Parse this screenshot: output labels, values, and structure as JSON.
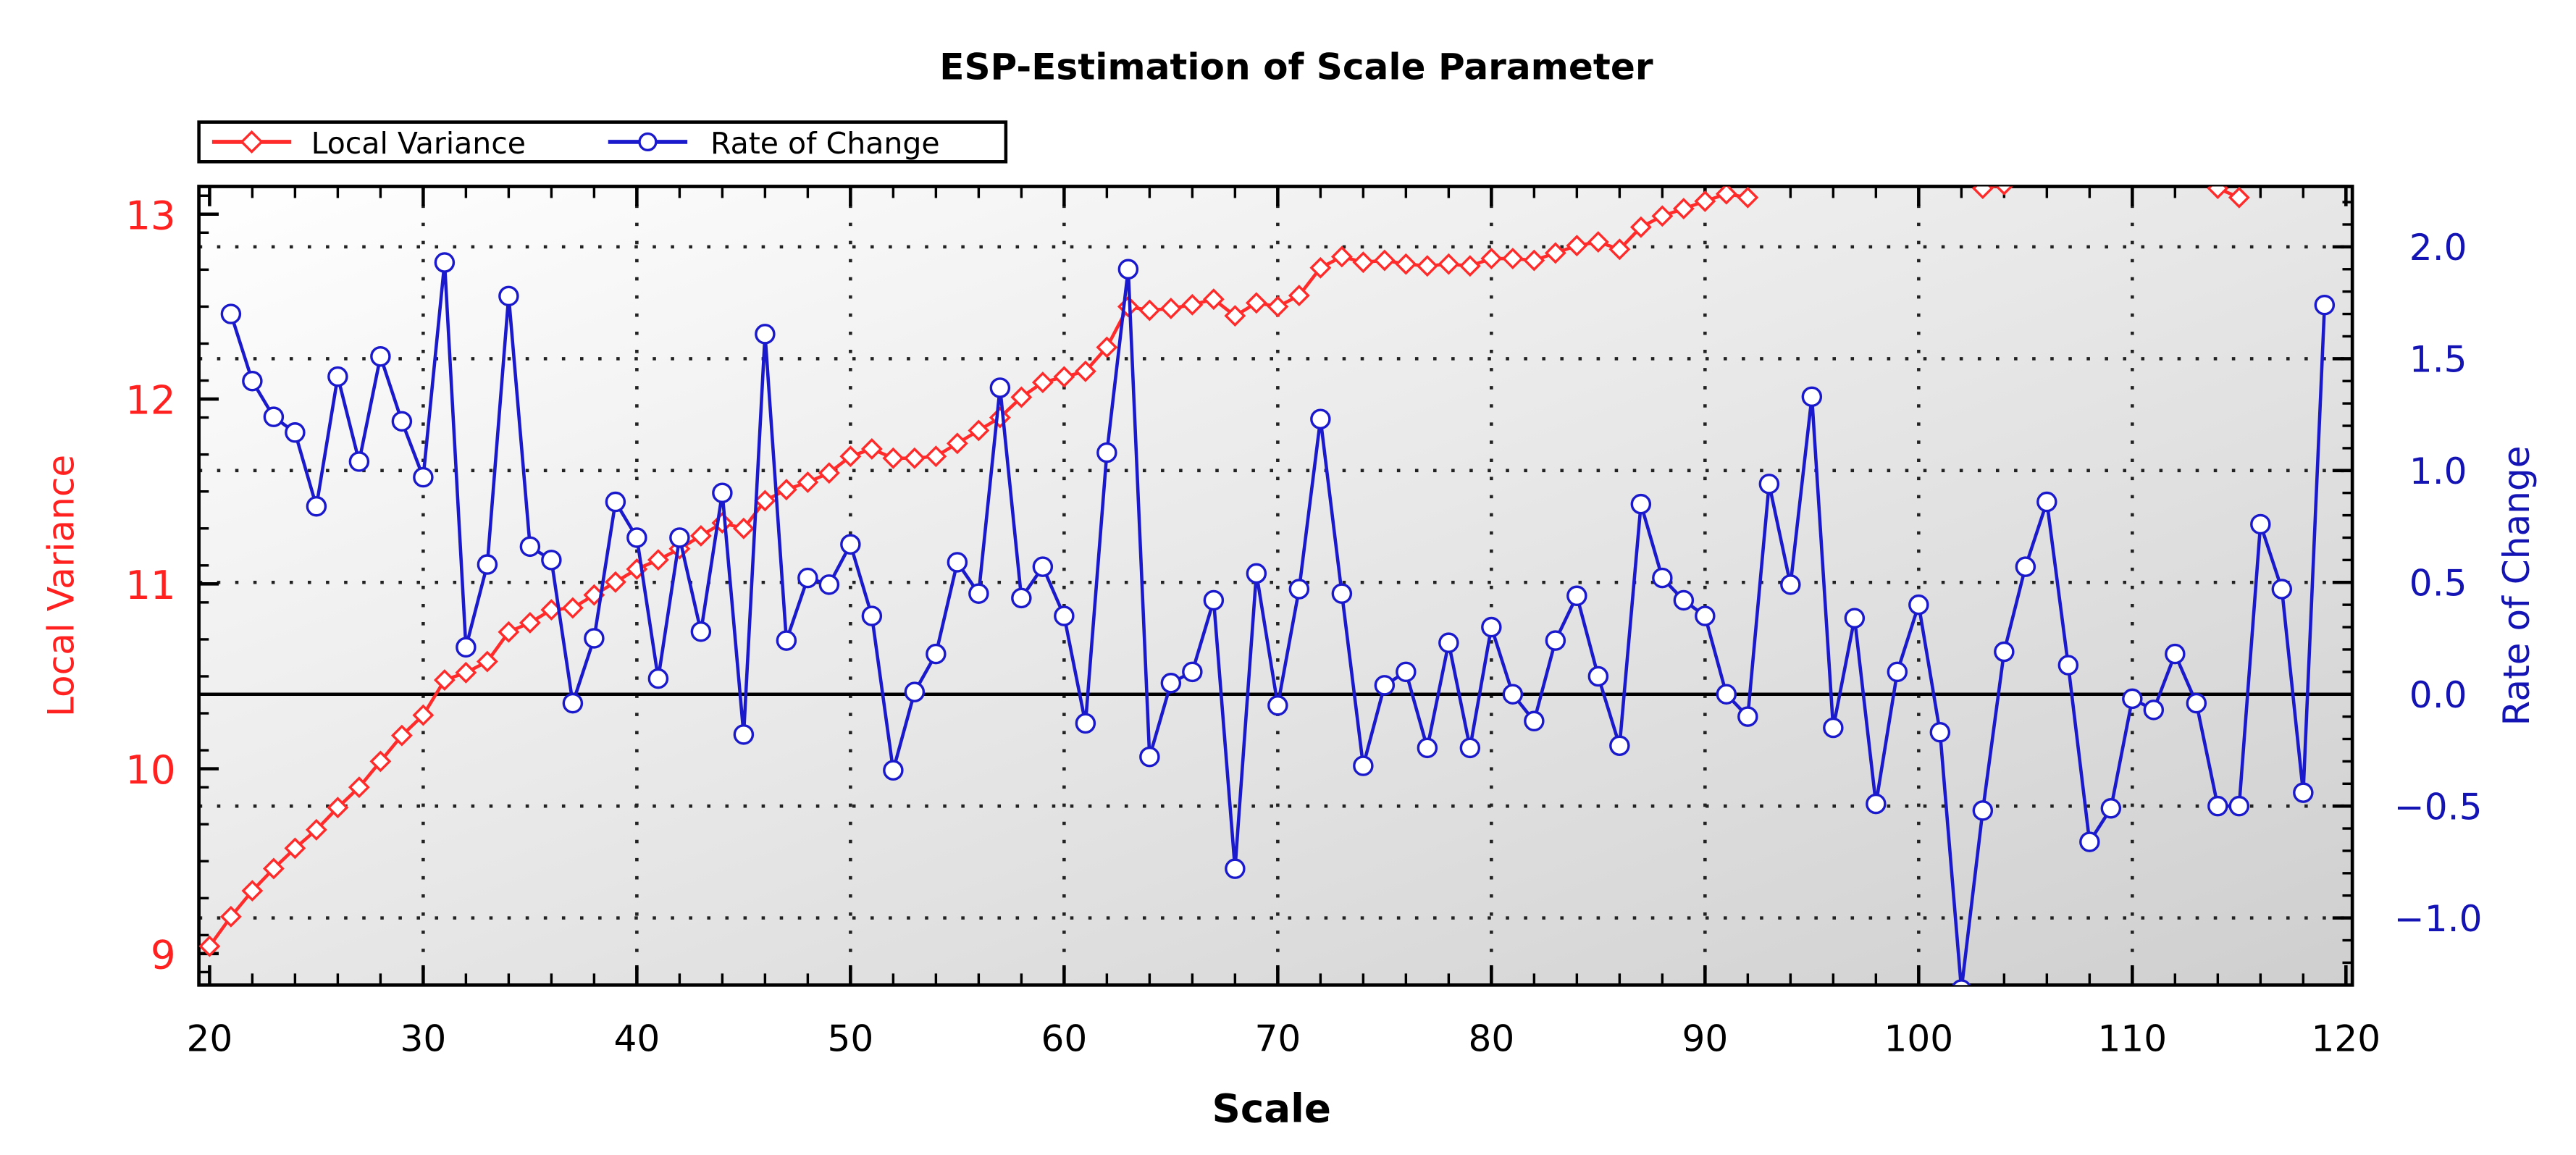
{
  "chart_data": {
    "type": "line",
    "title": "ESP-Estimation of Scale Parameter",
    "xlabel": "Scale",
    "ylabel_left": "Local Variance",
    "ylabel_right": "Rate of Change",
    "xlim": [
      19.5,
      120.3
    ],
    "ylim_left": [
      8.83,
      13.15
    ],
    "ylim_right": [
      -1.3,
      2.27
    ],
    "x_ticks": [
      20,
      30,
      40,
      50,
      60,
      70,
      80,
      90,
      100,
      110,
      120
    ],
    "y_left_ticks": [
      9,
      10,
      11,
      12,
      13
    ],
    "y_right_ticks": [
      -1.0,
      -0.5,
      0.0,
      0.5,
      1.0,
      1.5,
      2.0
    ],
    "y_right_tick_labels": [
      "−1.0",
      "−0.5",
      "0.0",
      "0.5",
      "1.0",
      "1.5",
      "2.0"
    ],
    "grid": true,
    "legend": {
      "placement": "top-left, above plot",
      "entries": [
        "Local Variance",
        "Rate of Change"
      ]
    },
    "colors": {
      "local_variance": "#ff2a2a",
      "rate_of_change": "#1a1acc",
      "left_axis": "#ff2020",
      "right_axis": "#1414b4"
    },
    "series": [
      {
        "name": "Local Variance",
        "axis": "left",
        "marker": "diamond",
        "x_start": 20,
        "values": [
          9.04,
          9.2,
          9.34,
          9.46,
          9.57,
          9.67,
          9.79,
          9.9,
          10.04,
          10.18,
          10.29,
          10.48,
          10.52,
          10.58,
          10.74,
          10.79,
          10.86,
          10.87,
          10.94,
          11.01,
          11.08,
          11.13,
          11.19,
          11.26,
          11.33,
          11.3,
          11.45,
          11.51,
          11.55,
          11.6,
          11.69,
          11.73,
          11.68,
          11.68,
          11.69,
          11.76,
          11.83,
          11.9,
          12.01,
          12.09,
          12.12,
          12.15,
          12.28,
          12.5,
          12.48,
          12.49,
          12.51,
          12.54,
          12.45,
          12.52,
          12.5,
          12.56,
          12.71,
          12.77,
          12.74,
          12.75,
          12.73,
          12.72,
          12.73,
          12.72,
          12.76,
          12.76,
          12.75,
          12.79,
          12.83,
          12.85,
          12.81,
          12.93,
          12.99,
          13.03,
          13.07,
          13.11,
          13.09,
          null,
          null,
          null,
          null,
          null,
          null,
          null,
          null,
          null,
          null,
          13.14,
          13.16,
          null,
          null,
          null,
          null,
          null,
          null,
          null,
          null,
          null,
          13.14,
          13.09
        ]
      },
      {
        "name": "Rate of Change",
        "axis": "right",
        "marker": "circle",
        "x_start": 21,
        "values": [
          1.7,
          1.4,
          1.24,
          1.17,
          0.84,
          1.42,
          1.04,
          1.51,
          1.22,
          0.97,
          1.93,
          0.21,
          0.58,
          1.78,
          0.66,
          0.6,
          -0.04,
          0.25,
          0.86,
          0.7,
          0.07,
          0.7,
          0.28,
          0.9,
          -0.18,
          1.61,
          0.24,
          0.52,
          0.49,
          0.67,
          0.35,
          -0.34,
          0.01,
          0.18,
          0.59,
          0.45,
          1.37,
          0.43,
          0.57,
          0.35,
          -0.13,
          1.08,
          1.9,
          -0.28,
          0.05,
          0.1,
          0.42,
          -0.78,
          0.54,
          -0.05,
          0.47,
          1.23,
          0.45,
          -0.32,
          0.04,
          0.1,
          -0.24,
          0.23,
          -0.24,
          0.3,
          0.0,
          -0.12,
          0.24,
          0.44,
          0.08,
          -0.23,
          0.85,
          0.52,
          0.42,
          0.35,
          0.0,
          -0.1,
          0.94,
          0.49,
          1.33,
          -0.15,
          0.34,
          -0.49,
          0.1,
          0.4,
          -0.17,
          -1.32,
          -0.52,
          0.19,
          0.57,
          0.86,
          0.13,
          -0.66,
          -0.51,
          -0.02,
          -0.07,
          0.18,
          -0.04,
          -0.5,
          -0.5,
          0.76,
          0.47,
          -0.44,
          1.74
        ]
      }
    ]
  }
}
